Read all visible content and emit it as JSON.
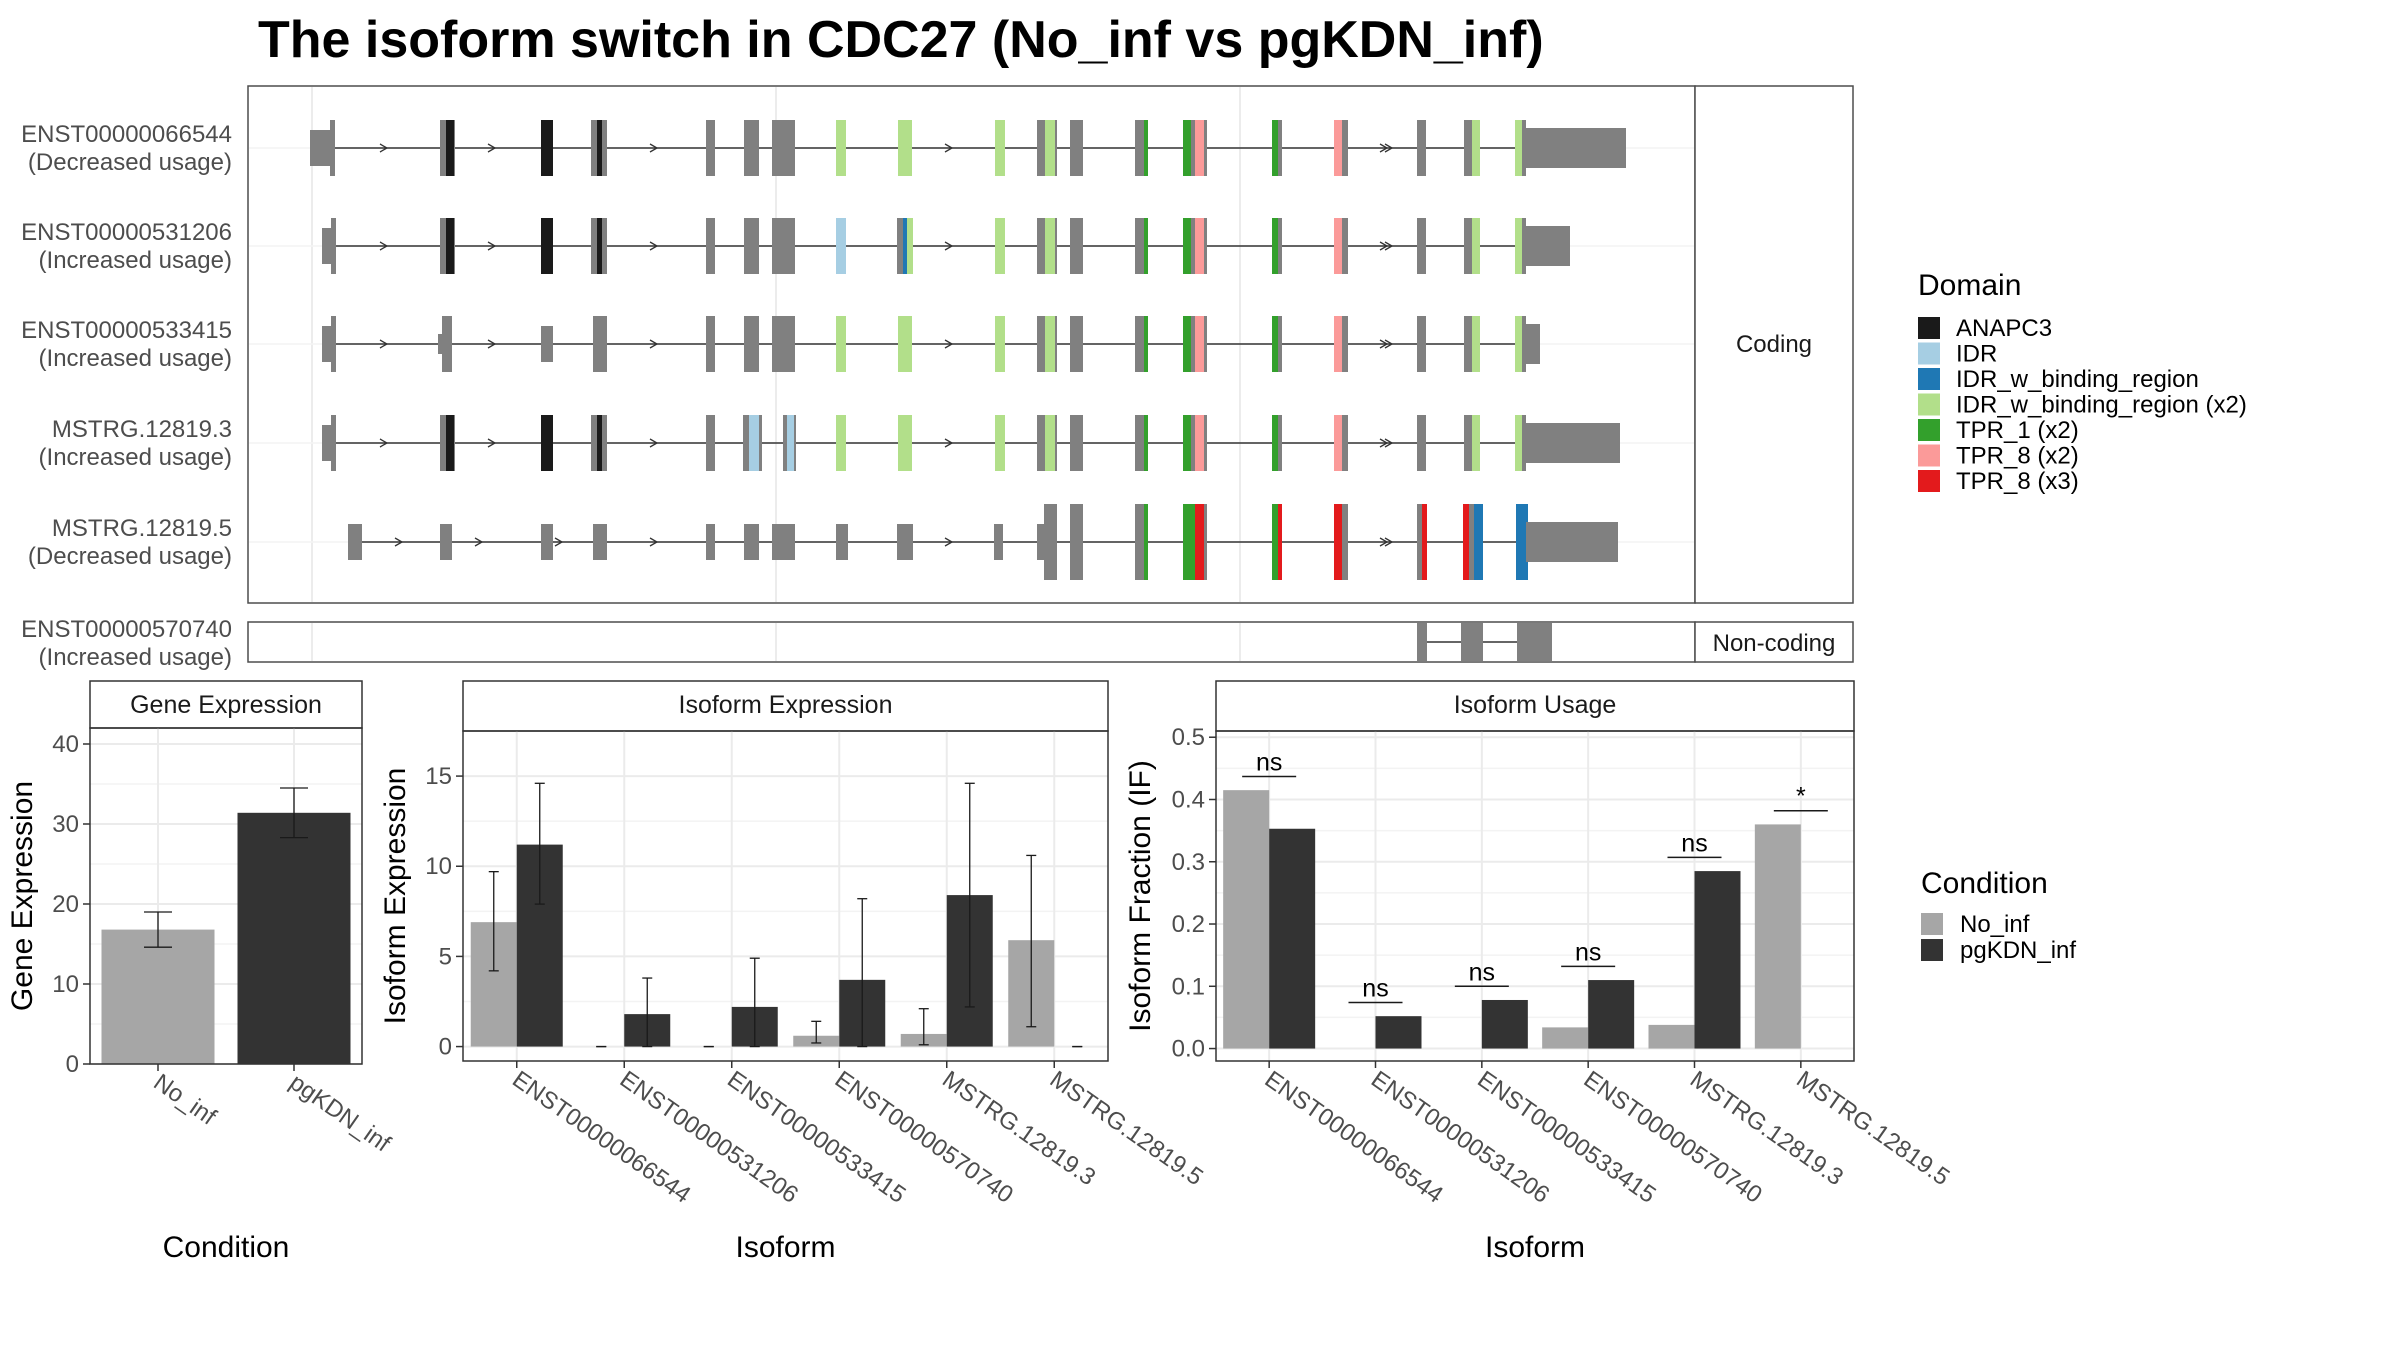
{
  "title": "The isoform switch in CDC27 (No_inf vs pgKDN_inf)",
  "colors": {
    "ANAPC3": "#1a1a1a",
    "IDR": "#a6cee3",
    "IDR_w_binding_region": "#1f78b4",
    "IDR_w_binding_region (x2)": "#b2df8a",
    "TPR_1 (x2)": "#33a02c",
    "TPR_8 (x2)": "#fb9a99",
    "TPR_8 (x3)": "#e31a1c",
    "exon": "#808080",
    "No_inf": "#a6a6a6",
    "pgKDN_inf": "#333333"
  },
  "structure": {
    "coding_strip": "Coding",
    "noncoding_strip": "Non-coding",
    "transcripts": [
      {
        "id": "ENST00000066544",
        "usage": "(Decreased usage)",
        "group": "coding",
        "variant": "a"
      },
      {
        "id": "ENST00000531206",
        "usage": "(Increased usage)",
        "group": "coding",
        "variant": "b"
      },
      {
        "id": "ENST00000533415",
        "usage": "(Increased usage)",
        "group": "coding",
        "variant": "c"
      },
      {
        "id": "MSTRG.12819.3",
        "usage": "(Increased usage)",
        "group": "coding",
        "variant": "d"
      },
      {
        "id": "MSTRG.12819.5",
        "usage": "(Decreased usage)",
        "group": "coding",
        "variant": "e"
      },
      {
        "id": "ENST00000570740",
        "usage": "(Increased usage)",
        "group": "noncoding",
        "variant": "n"
      }
    ]
  },
  "legend_domain": {
    "title": "Domain",
    "items": [
      "ANAPC3",
      "IDR",
      "IDR_w_binding_region",
      "IDR_w_binding_region (x2)",
      "TPR_1 (x2)",
      "TPR_8 (x2)",
      "TPR_8 (x3)"
    ]
  },
  "legend_condition": {
    "title": "Condition",
    "items": [
      "No_inf",
      "pgKDN_inf"
    ]
  },
  "chart_data": [
    {
      "type": "bar",
      "title": "Gene Expression",
      "xlabel": "Condition",
      "ylabel": "Gene Expression",
      "categories": [
        "No_inf",
        "pgKDN_inf"
      ],
      "values": [
        16.8,
        31.4
      ],
      "err_low": [
        14.6,
        28.3
      ],
      "err_high": [
        19.0,
        34.5
      ],
      "yticks": [
        0,
        10,
        20,
        30,
        40
      ],
      "ylim": [
        0,
        42
      ]
    },
    {
      "type": "bar",
      "title": "Isoform Expression",
      "xlabel": "Isoform",
      "ylabel": "Isoform Expression",
      "categories": [
        "ENST00000066544",
        "ENST00000531206",
        "ENST00000533415",
        "ENST00000570740",
        "MSTRG.12819.3",
        "MSTRG.12819.5"
      ],
      "series": [
        {
          "name": "No_inf",
          "values": [
            6.9,
            0,
            0,
            0.6,
            0.7,
            5.9
          ],
          "err_low": [
            4.2,
            0,
            0,
            0.2,
            0.1,
            1.1
          ],
          "err_high": [
            9.7,
            0,
            0,
            1.4,
            2.1,
            10.6
          ]
        },
        {
          "name": "pgKDN_inf",
          "values": [
            11.2,
            1.8,
            2.2,
            3.7,
            8.4,
            0
          ],
          "err_low": [
            7.9,
            0,
            0,
            0,
            2.2,
            0
          ],
          "err_high": [
            14.6,
            3.8,
            4.9,
            8.2,
            14.6,
            0
          ]
        }
      ],
      "yticks": [
        0,
        5,
        10,
        15
      ],
      "ylim": [
        -0.8,
        17.5
      ]
    },
    {
      "type": "bar",
      "title": "Isoform Usage",
      "xlabel": "Isoform",
      "ylabel": "Isoform Fraction (IF)",
      "categories": [
        "ENST00000066544",
        "ENST00000531206",
        "ENST00000533415",
        "ENST00000570740",
        "MSTRG.12819.3",
        "MSTRG.12819.5"
      ],
      "series": [
        {
          "name": "No_inf",
          "values": [
            0.415,
            0.0,
            0.0,
            0.034,
            0.038,
            0.36
          ]
        },
        {
          "name": "pgKDN_inf",
          "values": [
            0.353,
            0.052,
            0.078,
            0.11,
            0.285,
            0.0
          ]
        }
      ],
      "significance": [
        "ns",
        "ns",
        "ns",
        "ns",
        "ns",
        "*"
      ],
      "sig_y": [
        0.437,
        0.074,
        0.1,
        0.132,
        0.307,
        0.382
      ],
      "yticks": [
        0.0,
        0.1,
        0.2,
        0.3,
        0.4,
        0.5
      ],
      "ylim": [
        -0.02,
        0.51
      ]
    }
  ]
}
